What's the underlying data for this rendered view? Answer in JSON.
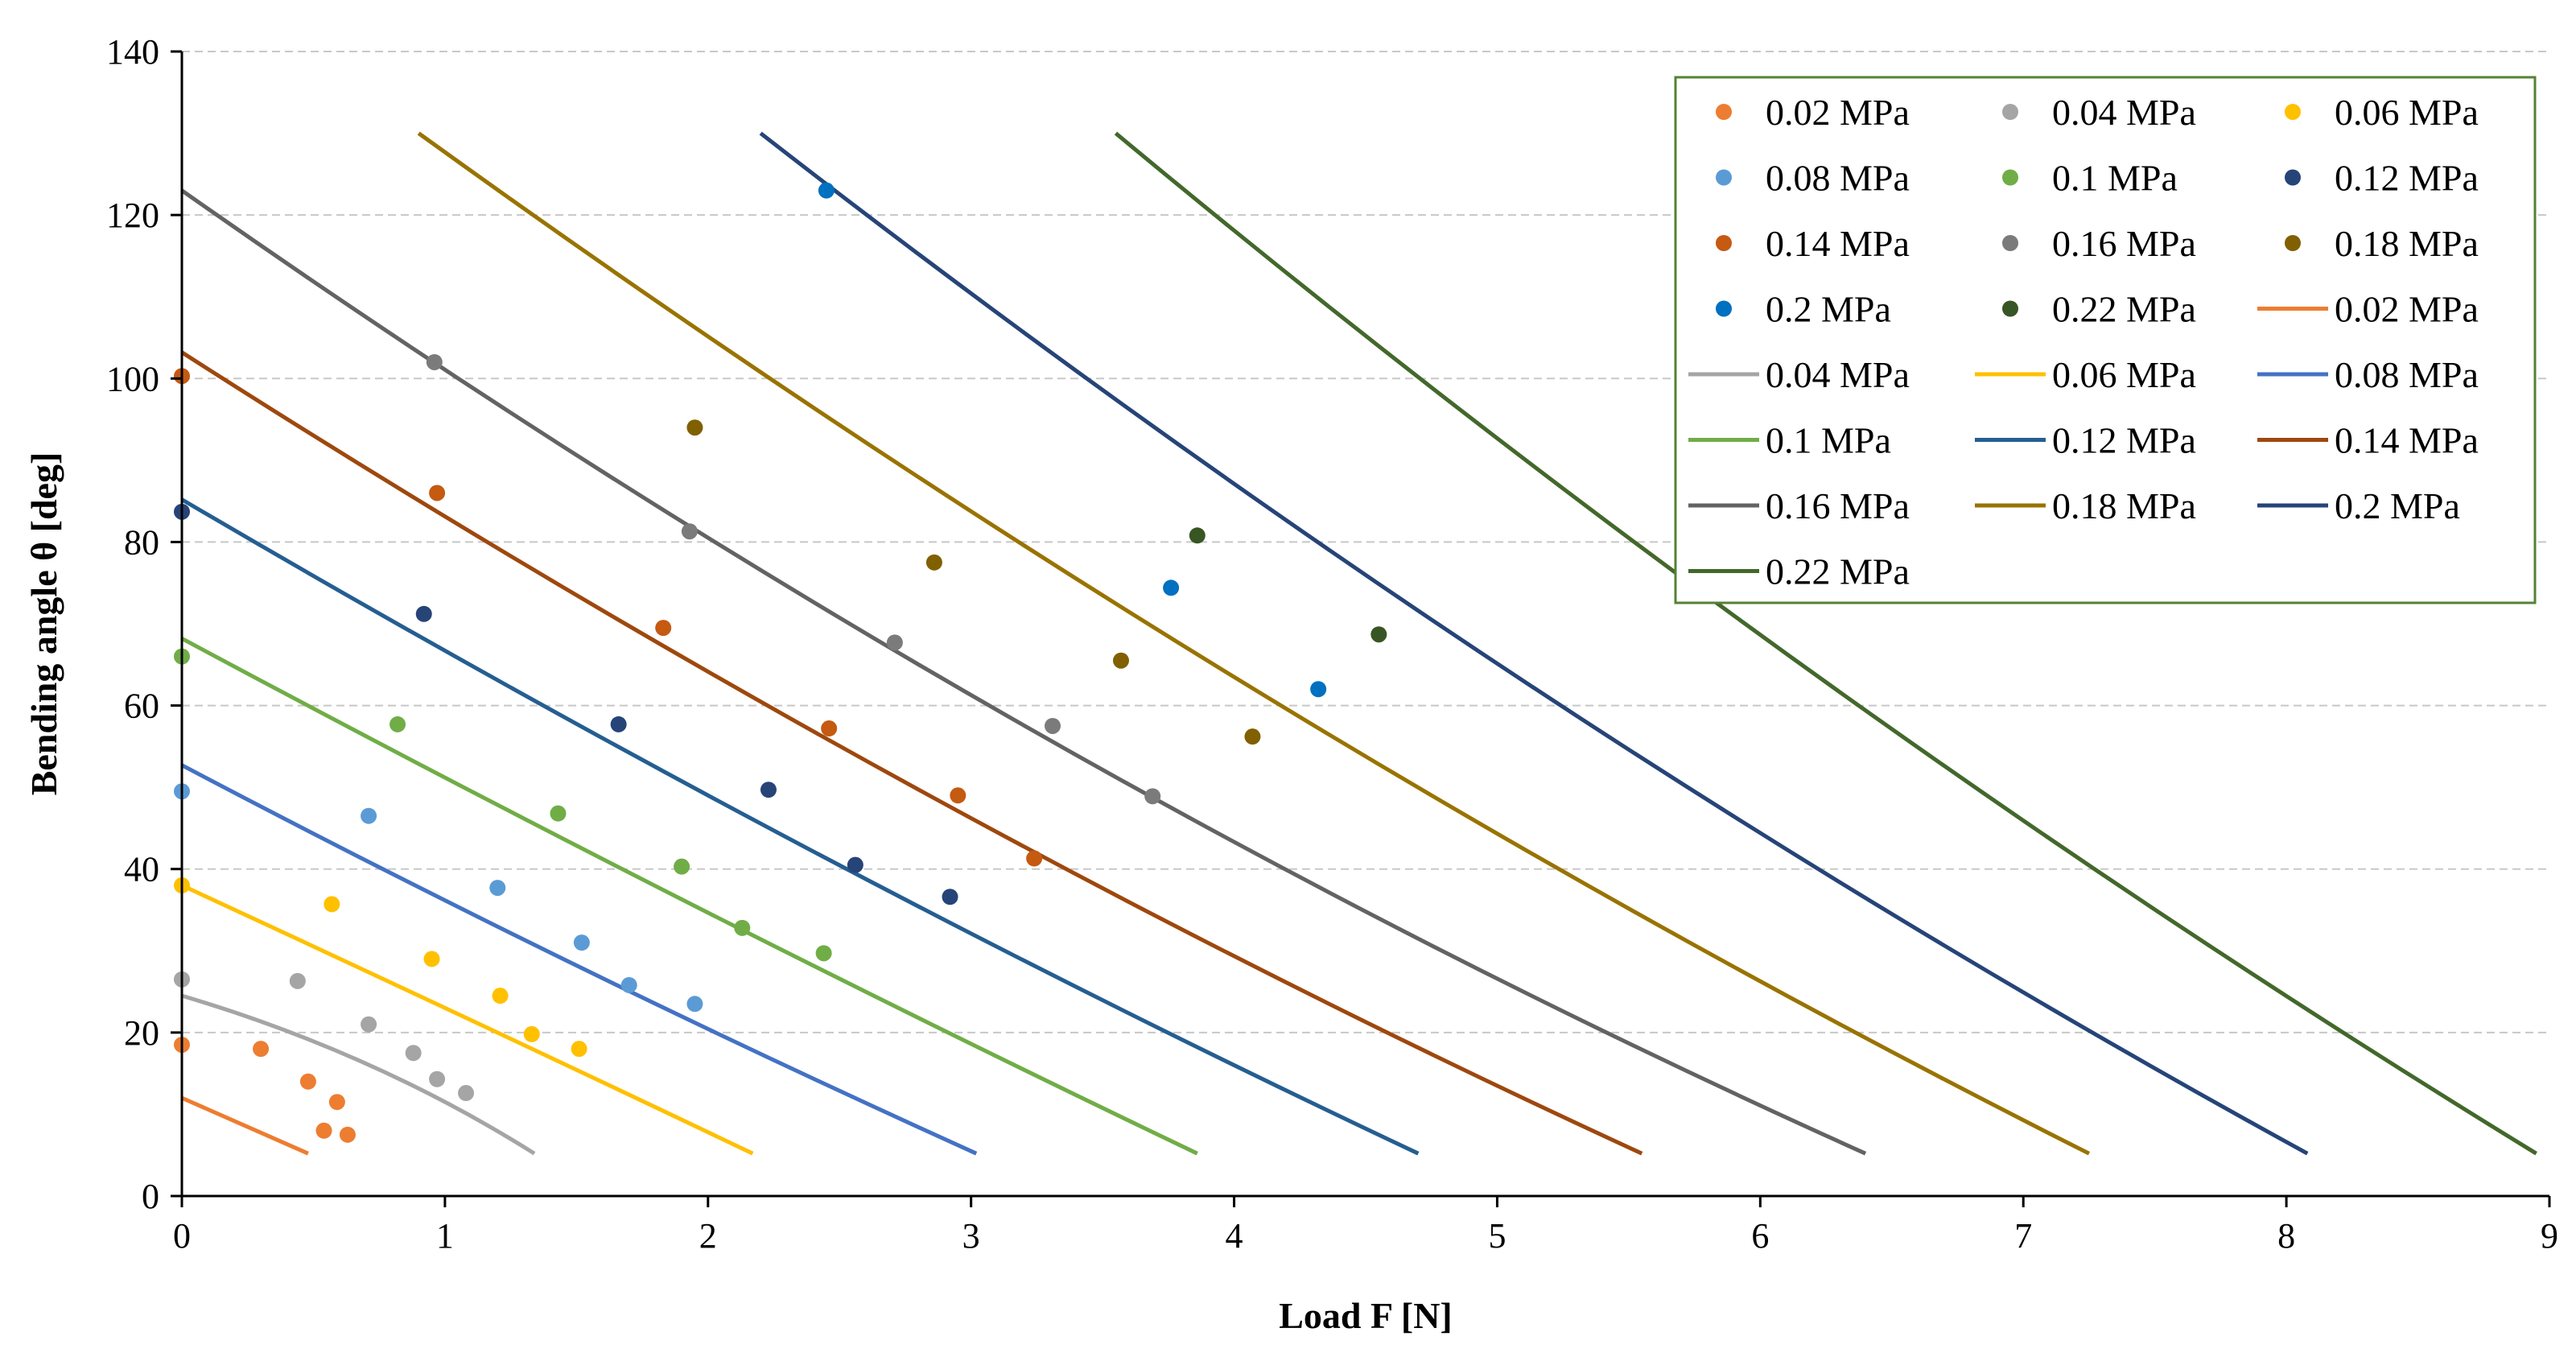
{
  "chart_data": {
    "type": "scatter",
    "title": "",
    "xlabel": "Load F [N]",
    "ylabel": "Bending angle θ [deg]",
    "xlim": [
      0,
      9
    ],
    "ylim": [
      0,
      140
    ],
    "xticks": [
      0,
      1,
      2,
      3,
      4,
      5,
      6,
      7,
      8,
      9
    ],
    "yticks": [
      0,
      20,
      40,
      60,
      80,
      100,
      120,
      140
    ],
    "grid": "horizontal dashed",
    "legend_position": "top-right",
    "measured": [
      {
        "name": "0.02 MPa",
        "color": "#ED7D31",
        "points": [
          [
            0,
            18.5
          ],
          [
            0.3,
            18
          ],
          [
            0.48,
            14
          ],
          [
            0.54,
            8
          ],
          [
            0.59,
            11.5
          ],
          [
            0.63,
            7.5
          ]
        ]
      },
      {
        "name": "0.04 MPa",
        "color": "#A5A5A5",
        "points": [
          [
            0,
            26.5
          ],
          [
            0.44,
            26.3
          ],
          [
            0.71,
            21
          ],
          [
            0.88,
            17.5
          ],
          [
            0.97,
            14.3
          ],
          [
            1.08,
            12.6
          ]
        ]
      },
      {
        "name": "0.06 MPa",
        "color": "#FFC000",
        "points": [
          [
            0,
            38
          ],
          [
            0.57,
            35.7
          ],
          [
            0.95,
            29
          ],
          [
            1.21,
            24.5
          ],
          [
            1.33,
            19.8
          ],
          [
            1.51,
            18
          ]
        ]
      },
      {
        "name": "0.08 MPa",
        "color": "#5B9BD5",
        "points": [
          [
            0,
            49.5
          ],
          [
            0.71,
            46.5
          ],
          [
            1.2,
            37.7
          ],
          [
            1.52,
            31
          ],
          [
            1.7,
            25.8
          ],
          [
            1.95,
            23.5
          ]
        ]
      },
      {
        "name": "0.1 MPa",
        "color": "#70AD47",
        "points": [
          [
            0,
            66
          ],
          [
            0.82,
            57.7
          ],
          [
            1.43,
            46.8
          ],
          [
            1.9,
            40.3
          ],
          [
            2.13,
            32.8
          ],
          [
            2.44,
            29.7
          ]
        ]
      },
      {
        "name": "0.12 MPa",
        "color": "#264478",
        "points": [
          [
            0,
            83.7
          ],
          [
            0.92,
            71.2
          ],
          [
            1.66,
            57.7
          ],
          [
            2.23,
            49.7
          ],
          [
            2.56,
            40.5
          ],
          [
            2.92,
            36.6
          ]
        ]
      },
      {
        "name": "0.14 MPa",
        "color": "#C55A11",
        "points": [
          [
            0,
            100.3
          ],
          [
            0.97,
            86
          ],
          [
            1.83,
            69.5
          ],
          [
            2.46,
            57.2
          ],
          [
            2.95,
            49
          ],
          [
            3.24,
            41.3
          ]
        ]
      },
      {
        "name": "0.16 MPa",
        "color": "#7B7B7B",
        "points": [
          [
            0.96,
            102
          ],
          [
            1.93,
            81.3
          ],
          [
            2.71,
            67.7
          ],
          [
            3.31,
            57.5
          ],
          [
            3.69,
            48.9
          ]
        ]
      },
      {
        "name": "0.18 MPa",
        "color": "#806000",
        "points": [
          [
            1.95,
            94
          ],
          [
            2.86,
            77.5
          ],
          [
            3.57,
            65.5
          ],
          [
            4.07,
            56.2
          ]
        ]
      },
      {
        "name": "0.2 MPa",
        "color": "#0070C0",
        "points": [
          [
            2.45,
            123
          ],
          [
            3.76,
            74.4
          ],
          [
            4.32,
            62
          ]
        ]
      },
      {
        "name": "0.22 MPa",
        "color": "#375623",
        "points": [
          [
            3.86,
            80.8
          ],
          [
            4.55,
            68.7
          ]
        ]
      }
    ],
    "model": [
      {
        "name": "0.02 MPa",
        "color": "#ED7D31",
        "points": [
          [
            0,
            12
          ],
          [
            0.48,
            5.2
          ]
        ]
      },
      {
        "name": "0.04 MPa",
        "color": "#A5A5A5",
        "points": [
          [
            0,
            24.5
          ],
          [
            0.7,
            16.2
          ],
          [
            1.34,
            5.2
          ]
        ]
      },
      {
        "name": "0.06 MPa",
        "color": "#FFC000",
        "points": [
          [
            0,
            38
          ],
          [
            1.1,
            21.5
          ],
          [
            2.17,
            5.2
          ]
        ]
      },
      {
        "name": "0.08 MPa",
        "color": "#4472C4",
        "points": [
          [
            0,
            52.7
          ],
          [
            1.5,
            28.2
          ],
          [
            3.02,
            5.2
          ]
        ]
      },
      {
        "name": "0.1 MPa",
        "color": "#70AD47",
        "points": [
          [
            0,
            68.2
          ],
          [
            1.93,
            35.8
          ],
          [
            3.86,
            5.2
          ]
        ]
      },
      {
        "name": "0.12 MPa",
        "color": "#255E91",
        "points": [
          [
            0,
            85.2
          ],
          [
            2.35,
            43
          ],
          [
            4.7,
            5.2
          ]
        ]
      },
      {
        "name": "0.14 MPa",
        "color": "#9E480E",
        "points": [
          [
            0,
            103.2
          ],
          [
            2.75,
            50.6
          ],
          [
            5.55,
            5.2
          ]
        ]
      },
      {
        "name": "0.16 MPa",
        "color": "#636363",
        "points": [
          [
            0,
            123
          ],
          [
            3.15,
            58.5
          ],
          [
            6.4,
            5.2
          ]
        ]
      },
      {
        "name": "0.18 MPa",
        "color": "#997300",
        "points": [
          [
            0.9,
            130
          ],
          [
            4.05,
            62.5
          ],
          [
            7.25,
            5.2
          ]
        ]
      },
      {
        "name": "0.2 MPa",
        "color": "#264478",
        "points": [
          [
            2.2,
            130
          ],
          [
            5.1,
            63
          ],
          [
            8.08,
            5.2
          ]
        ]
      },
      {
        "name": "0.22 MPa",
        "color": "#43682B",
        "points": [
          [
            3.55,
            130
          ],
          [
            6.2,
            64
          ],
          [
            8.95,
            5.2
          ]
        ]
      }
    ]
  }
}
